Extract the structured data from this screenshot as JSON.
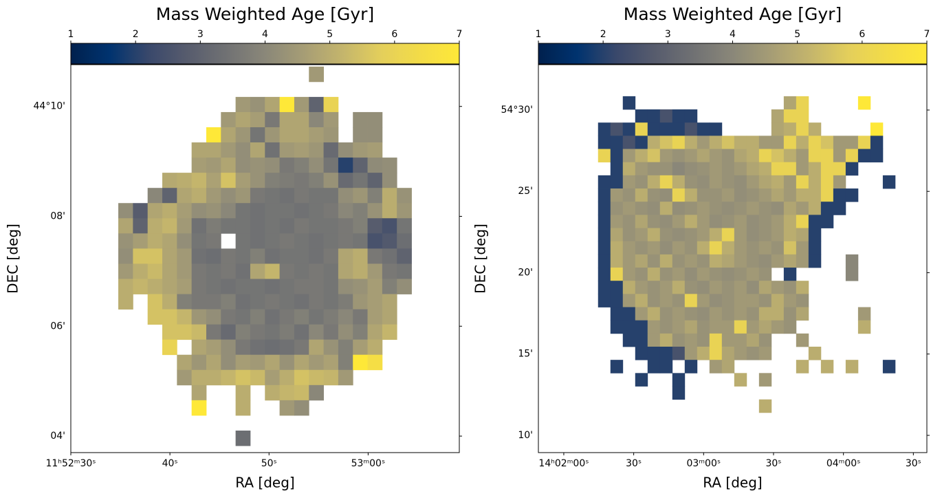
{
  "chart_data": [
    {
      "type": "heatmap",
      "title": "Mass Weighted Age [Gyr]",
      "xlabel": "RA [deg]",
      "ylabel": "DEC [deg]",
      "colormap": "cividis",
      "zlim": [
        1,
        7
      ],
      "zticks": [
        1,
        2,
        3,
        4,
        5,
        6,
        7
      ],
      "xlim": [
        30,
        69.2
      ],
      "ylim": [
        3.7,
        10.76
      ],
      "xticks": [
        {
          "value": 30,
          "label": "11ʰ52ᵐ30ˢ"
        },
        {
          "value": 40,
          "label": "40ˢ"
        },
        {
          "value": 50,
          "label": "50ˢ"
        },
        {
          "value": 60,
          "label": "53ᵐ00ˢ"
        }
      ],
      "yticks": [
        {
          "value": 10,
          "label": "44°10'"
        },
        {
          "value": 8,
          "label": "08'"
        },
        {
          "value": 6,
          "label": "06'"
        },
        {
          "value": 4,
          "label": "04'"
        }
      ],
      "extent": [
        34.79,
        64.38,
        3.825,
        10.725
      ],
      "values": [
        [
          null,
          null,
          null,
          null,
          null,
          null,
          null,
          null,
          null,
          null,
          null,
          null,
          null,
          4.5,
          null,
          null,
          null,
          null,
          null,
          null
        ],
        [
          null,
          null,
          null,
          null,
          null,
          null,
          null,
          null,
          null,
          null,
          null,
          null,
          null,
          null,
          null,
          null,
          null,
          null,
          null,
          null
        ],
        [
          null,
          null,
          null,
          null,
          null,
          null,
          null,
          null,
          4.5,
          4.3,
          4.8,
          7,
          4.5,
          3,
          6,
          null,
          null,
          null,
          null,
          null
        ],
        [
          null,
          null,
          null,
          null,
          null,
          null,
          null,
          4.5,
          4.8,
          4.6,
          3.6,
          4.8,
          4.8,
          4,
          4.5,
          null,
          4.2,
          4.2,
          null,
          null
        ],
        [
          null,
          null,
          null,
          null,
          null,
          null,
          7,
          4.8,
          4.4,
          3.5,
          4.4,
          4.8,
          4.8,
          4.6,
          4.4,
          null,
          4.2,
          4.2,
          null,
          null
        ],
        [
          null,
          null,
          null,
          null,
          null,
          4.8,
          4.8,
          4.5,
          4.2,
          4.8,
          3.4,
          4.5,
          4.6,
          4.4,
          3.2,
          4.2,
          4.5,
          4.6,
          null,
          null
        ],
        [
          null,
          null,
          null,
          null,
          null,
          4.6,
          4.5,
          4.8,
          4.2,
          4.3,
          4.2,
          3.6,
          3.8,
          4.2,
          3.5,
          2,
          3,
          4.1,
          4.2,
          null
        ],
        [
          null,
          null,
          null,
          4.9,
          5,
          5.2,
          4.7,
          5.5,
          4.6,
          4.3,
          3.8,
          3.7,
          3.6,
          3.8,
          4.3,
          3.2,
          3.5,
          3,
          4.2,
          null
        ],
        [
          null,
          null,
          4,
          3,
          4.8,
          5,
          4.5,
          4.2,
          4.4,
          3.6,
          3.5,
          3.4,
          3.6,
          3.5,
          3.5,
          4.2,
          4.4,
          3.8,
          5,
          4.3
        ],
        [
          4.2,
          2.8,
          4.8,
          5,
          4.6,
          4.2,
          4.3,
          4,
          3.5,
          3.4,
          3.5,
          3.5,
          3.4,
          3.5,
          3.6,
          4,
          3.8,
          4.3,
          5,
          4.4
        ],
        [
          4.8,
          3,
          5,
          5.2,
          4.5,
          3.4,
          3.7,
          3.5,
          3.5,
          3.4,
          3.5,
          3.4,
          3.6,
          3.5,
          3.5,
          3.6,
          3.8,
          2.8,
          2.5,
          3.5
        ],
        [
          4.3,
          4.6,
          5,
          4.8,
          4.2,
          3.5,
          3.6,
          null,
          3.5,
          3.4,
          3.5,
          3.6,
          3.5,
          3.4,
          3.5,
          3.6,
          3.5,
          2.5,
          2.7,
          3.3
        ],
        [
          4.2,
          5.5,
          5.5,
          4.8,
          4.5,
          3.4,
          3.3,
          3.6,
          3.5,
          3.8,
          3.4,
          3.5,
          3.5,
          3.4,
          3.6,
          4.8,
          5,
          3.6,
          3.4,
          3
        ],
        [
          4.5,
          5,
          5.3,
          4.8,
          4.5,
          3.6,
          3.5,
          3.6,
          3.4,
          4.8,
          5.2,
          3.6,
          3.5,
          3.6,
          3.5,
          4.8,
          5,
          4.5,
          3.6,
          3.5
        ],
        [
          5,
          5.2,
          5,
          4.8,
          4.6,
          3.6,
          3.5,
          3.4,
          3.5,
          3.5,
          3.4,
          3.5,
          3.6,
          3.6,
          3.5,
          4.2,
          4.3,
          4.6,
          3.8,
          4.2
        ],
        [
          5,
          null,
          5.5,
          5,
          3.8,
          3.6,
          3.6,
          3.8,
          3.4,
          3.5,
          3.6,
          3.5,
          3.4,
          3.6,
          3.5,
          3.7,
          4.4,
          4.6,
          4.8,
          null
        ],
        [
          null,
          null,
          5.5,
          5.5,
          5.2,
          4.4,
          4.2,
          3.6,
          3.5,
          3.8,
          3.4,
          3.6,
          3.8,
          3.5,
          3.7,
          4,
          3.6,
          4.6,
          4.8,
          null
        ],
        [
          null,
          null,
          null,
          5.5,
          5.5,
          5.3,
          3.6,
          3.2,
          3.8,
          3.6,
          3.5,
          3.7,
          3.4,
          4,
          3.6,
          4.2,
          3.8,
          4.8,
          5.2,
          null
        ],
        [
          null,
          null,
          null,
          6,
          null,
          4.8,
          4.6,
          4.2,
          3.6,
          3.4,
          3.3,
          3.4,
          3.6,
          4.8,
          4.3,
          3.8,
          4.6,
          5,
          null,
          null
        ],
        [
          null,
          null,
          null,
          null,
          4.8,
          4.4,
          4.8,
          4.2,
          4.6,
          4.5,
          4.8,
          4.3,
          4.8,
          4.5,
          4.7,
          3.8,
          7,
          6.5,
          null,
          null
        ],
        [
          null,
          null,
          null,
          null,
          4.5,
          5,
          5,
          5.2,
          5.5,
          5.3,
          4.6,
          5,
          5.5,
          5.3,
          5.2,
          4.5,
          null,
          null,
          null,
          null
        ],
        [
          null,
          null,
          null,
          null,
          null,
          4.8,
          null,
          null,
          5,
          null,
          5,
          5.2,
          5.3,
          4,
          null,
          null,
          null,
          null,
          null,
          null
        ],
        [
          null,
          null,
          null,
          null,
          null,
          7,
          null,
          null,
          5,
          null,
          null,
          4.5,
          4.2,
          null,
          null,
          null,
          null,
          null,
          null,
          null
        ],
        [
          null,
          null,
          null,
          null,
          null,
          null,
          null,
          null,
          null,
          null,
          null,
          null,
          null,
          null,
          null,
          null,
          null,
          null,
          null,
          null
        ],
        [
          null,
          null,
          null,
          null,
          null,
          null,
          null,
          null,
          3.3,
          null,
          null,
          null,
          null,
          null,
          null,
          null,
          null,
          null,
          null,
          null
        ]
      ]
    },
    {
      "type": "heatmap",
      "title": "Mass Weighted Age [Gyr]",
      "xlabel": "RA [deg]",
      "ylabel": "DEC [deg]",
      "colormap": "cividis",
      "zlim": [
        1,
        7
      ],
      "zticks": [
        1,
        2,
        3,
        4,
        5,
        6,
        7
      ],
      "xlim": [
        -10.9,
        155.8
      ],
      "ylim": [
        8.94,
        32.79
      ],
      "xticks": [
        {
          "value": 0,
          "label": "14ʰ02ᵐ00ˢ"
        },
        {
          "value": 30,
          "label": "30ˢ"
        },
        {
          "value": 60,
          "label": "03ᵐ00ˢ"
        },
        {
          "value": 90,
          "label": "30ˢ"
        },
        {
          "value": 120,
          "label": "04ᵐ00ˢ"
        },
        {
          "value": 150,
          "label": "30ˢ"
        }
      ],
      "yticks": [
        {
          "value": 30,
          "label": "54°30'"
        },
        {
          "value": 25,
          "label": "25'"
        },
        {
          "value": 20,
          "label": "20'"
        },
        {
          "value": 15,
          "label": "15'"
        },
        {
          "value": 10,
          "label": "10'"
        }
      ],
      "extent": [
        14.7,
        142.2,
        11.4,
        30.85
      ],
      "values": [
        [
          null,
          null,
          2,
          null,
          null,
          null,
          null,
          null,
          null,
          null,
          null,
          null,
          null,
          null,
          null,
          4.8,
          6,
          null,
          null,
          null,
          null,
          7,
          null,
          null
        ],
        [
          null,
          null,
          null,
          2,
          2,
          2.5,
          2,
          2,
          null,
          null,
          null,
          null,
          null,
          null,
          4.8,
          6,
          6,
          null,
          null,
          null,
          null,
          null,
          null,
          null
        ],
        [
          2,
          2.5,
          2,
          6,
          2,
          2,
          2,
          2.5,
          2,
          2,
          null,
          null,
          null,
          null,
          4.8,
          5,
          6,
          5,
          null,
          null,
          null,
          null,
          7,
          null
        ],
        [
          2,
          2,
          2.5,
          2,
          5,
          5.5,
          6,
          5,
          4.5,
          5,
          5.5,
          5,
          5,
          4.5,
          4.5,
          6,
          5,
          6,
          5.5,
          4.5,
          4.5,
          6,
          2,
          null
        ],
        [
          6,
          2,
          4.5,
          5,
          5.5,
          4.5,
          4.3,
          4.5,
          4.8,
          4.5,
          4.3,
          4.8,
          5,
          6,
          5.5,
          5,
          4.5,
          6,
          6,
          4.5,
          6,
          2,
          2,
          null
        ],
        [
          null,
          2,
          5,
          4.5,
          4.3,
          4.3,
          4,
          4.2,
          4.3,
          4.5,
          4.3,
          4.5,
          4.8,
          5,
          6,
          6,
          4.5,
          5,
          6,
          6,
          2,
          null,
          null,
          null
        ],
        [
          2,
          2,
          4.5,
          4.3,
          5,
          6,
          5,
          4.3,
          4.2,
          4.5,
          4.3,
          4.2,
          4.5,
          4.8,
          5,
          4.5,
          6,
          5,
          6,
          4.5,
          null,
          null,
          null,
          2
        ],
        [
          2,
          4.5,
          4.3,
          5,
          4.3,
          4.2,
          6,
          5,
          4.3,
          4.3,
          4.5,
          4.2,
          4.3,
          4.5,
          4.8,
          4.5,
          5,
          5,
          6,
          2,
          2,
          null,
          null,
          null
        ],
        [
          2,
          4.3,
          4.5,
          4.3,
          4.2,
          5,
          4.2,
          4.3,
          4.5,
          4.3,
          4.2,
          4.3,
          4.5,
          4.3,
          4.2,
          4.8,
          4.5,
          5,
          2,
          2,
          null,
          null,
          null,
          null
        ],
        [
          2,
          4.5,
          4.3,
          4.8,
          4.3,
          4.2,
          4.5,
          5,
          4.5,
          4.2,
          4.3,
          4.5,
          4.2,
          4.3,
          4.5,
          5,
          6,
          2,
          2,
          null,
          null,
          null,
          null,
          null
        ],
        [
          2,
          4.8,
          4.3,
          4.5,
          5,
          4.3,
          4.2,
          4.3,
          4.5,
          5,
          6,
          4.5,
          4.2,
          4.3,
          4.5,
          5,
          4.8,
          2,
          null,
          null,
          null,
          null,
          null,
          null
        ],
        [
          2,
          5,
          4.5,
          4.3,
          4.5,
          4.2,
          4.5,
          4.3,
          5,
          6,
          5,
          4.5,
          4.3,
          4.5,
          4.3,
          5.5,
          4.5,
          2,
          null,
          null,
          null,
          null,
          null,
          null
        ],
        [
          2,
          5,
          4.5,
          4.8,
          4.3,
          5,
          4.3,
          4.5,
          4.3,
          5,
          4.8,
          4.5,
          4.3,
          4.2,
          4.5,
          4.8,
          4.5,
          2,
          null,
          null,
          4,
          null,
          null,
          null
        ],
        [
          2,
          6,
          4.5,
          4.3,
          5,
          4.3,
          4.5,
          4.2,
          4.5,
          4.3,
          4.2,
          4.3,
          4.5,
          4.3,
          null,
          2,
          null,
          null,
          null,
          null,
          4,
          null,
          null,
          null
        ],
        [
          2,
          2,
          5,
          4.5,
          4.3,
          4.5,
          5,
          4.3,
          4.2,
          4.5,
          4.3,
          4.5,
          4.2,
          4.8,
          4.5,
          4.3,
          5,
          null,
          null,
          null,
          null,
          null,
          null,
          null
        ],
        [
          2,
          2,
          4.5,
          5,
          4.3,
          4.5,
          4.3,
          6,
          4.5,
          4.2,
          4.3,
          4.5,
          4.5,
          4.3,
          5,
          4.5,
          4.3,
          null,
          null,
          null,
          null,
          null,
          null,
          null
        ],
        [
          null,
          2,
          2,
          4.5,
          5,
          4.3,
          4.5,
          4.3,
          4.2,
          4.5,
          4.3,
          4.5,
          4.3,
          5,
          5,
          4.3,
          4.8,
          null,
          null,
          null,
          null,
          4.5,
          null,
          null
        ],
        [
          null,
          2,
          2,
          2,
          4.5,
          4.3,
          4.5,
          4.8,
          4.3,
          4.5,
          4.5,
          6,
          4.5,
          4.8,
          4.5,
          4.3,
          null,
          null,
          null,
          null,
          null,
          5,
          null,
          null
        ],
        [
          null,
          null,
          2,
          2,
          4.5,
          5,
          4.3,
          4.5,
          4.3,
          6,
          4.5,
          4.5,
          4.8,
          4.3,
          null,
          null,
          4.5,
          null,
          null,
          null,
          null,
          null,
          null,
          null
        ],
        [
          null,
          null,
          null,
          2,
          2,
          2,
          2.5,
          4.5,
          5,
          6,
          4.8,
          4.5,
          4.3,
          4.5,
          null,
          null,
          null,
          5,
          null,
          null,
          null,
          null,
          null,
          null
        ],
        [
          null,
          2,
          null,
          null,
          2,
          2,
          null,
          2,
          null,
          4.5,
          4.8,
          null,
          null,
          null,
          null,
          null,
          5,
          null,
          5,
          null,
          5,
          null,
          null,
          2
        ],
        [
          null,
          null,
          null,
          2,
          null,
          null,
          2,
          null,
          null,
          null,
          null,
          5,
          null,
          4.5,
          null,
          null,
          null,
          null,
          null,
          null,
          null,
          null,
          null,
          null
        ],
        [
          null,
          null,
          null,
          null,
          null,
          null,
          2,
          null,
          null,
          null,
          null,
          null,
          null,
          null,
          null,
          null,
          null,
          null,
          null,
          null,
          null,
          null,
          null,
          null
        ],
        [
          null,
          null,
          null,
          null,
          null,
          null,
          null,
          null,
          null,
          null,
          null,
          null,
          null,
          5,
          null,
          null,
          null,
          null,
          null,
          null,
          null,
          null,
          null,
          null
        ]
      ]
    }
  ]
}
